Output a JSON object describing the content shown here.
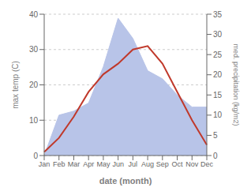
{
  "chart_data": {
    "type": "line",
    "xlabel": "date (month)",
    "ylabel": "max temp (C)",
    "y2label": "med. precipitation (kg/m2)",
    "categories": [
      "Jan",
      "Feb",
      "Mar",
      "Apr",
      "May",
      "Jun",
      "Jul",
      "Aug",
      "Sep",
      "Oct",
      "Nov",
      "Dec"
    ],
    "series": [
      {
        "type": "area",
        "axis": "y2",
        "color": "#b8c4e8",
        "values": [
          0,
          10,
          11,
          13,
          22,
          34,
          29,
          21,
          19,
          15,
          12,
          12
        ]
      },
      {
        "type": "line",
        "color": "#c0392b",
        "values": [
          1,
          5,
          11,
          18,
          23,
          26,
          30,
          31,
          26,
          18,
          10,
          3
        ]
      }
    ],
    "ylim": [
      0,
      40
    ],
    "yticks": [
      0,
      10,
      20,
      30,
      40
    ],
    "y2lim": [
      0,
      35
    ],
    "y2ticks": [
      0,
      5,
      10,
      15,
      20,
      25,
      30,
      35
    ],
    "grid": true
  }
}
